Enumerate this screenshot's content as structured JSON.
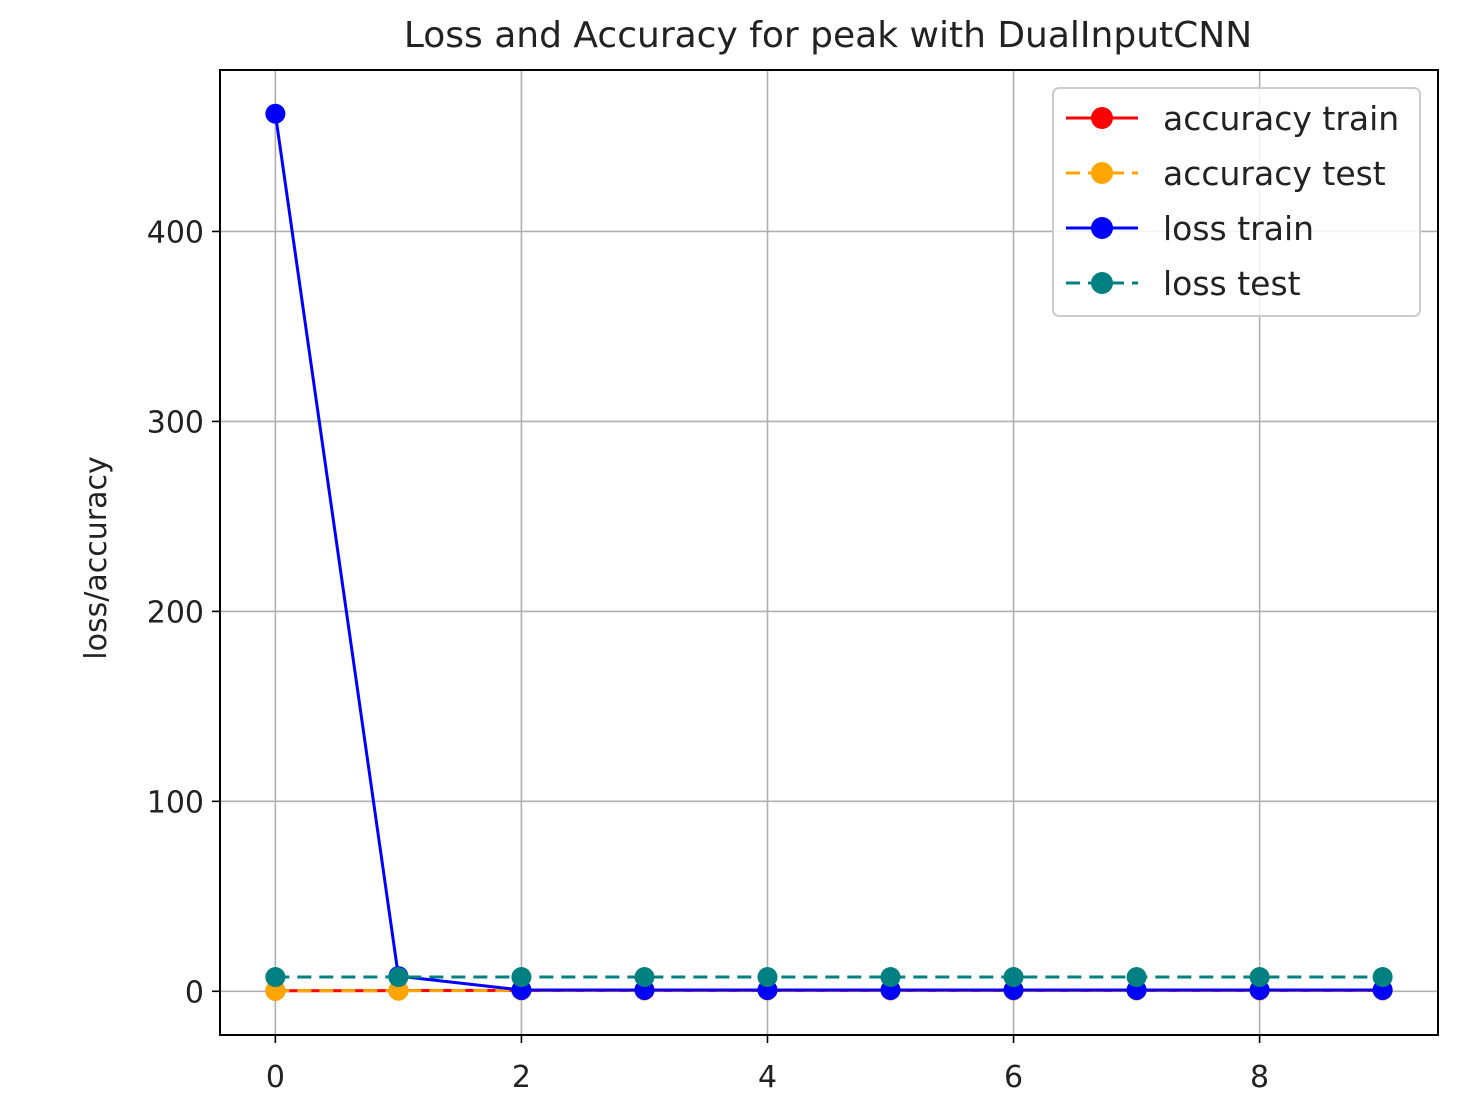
{
  "chart_data": {
    "type": "line",
    "title": "Loss and Accuracy for peak with DualInputCNN",
    "xlabel": "",
    "ylabel": "loss/accuracy",
    "x": [
      0,
      1,
      2,
      3,
      4,
      5,
      6,
      7,
      8,
      9
    ],
    "xlim": [
      -0.45,
      9.45
    ],
    "ylim": [
      -23,
      485
    ],
    "xticks": [
      0,
      2,
      4,
      6,
      8
    ],
    "yticks": [
      0,
      100,
      200,
      300,
      400
    ],
    "grid": true,
    "legend_position": "top-right",
    "series": [
      {
        "name": "accuracy train",
        "color": "#ff0000",
        "linestyle": "solid",
        "marker": "circle",
        "values": [
          0.3,
          0.4,
          0.5,
          0.5,
          0.5,
          0.5,
          0.5,
          0.5,
          0.5,
          0.5
        ]
      },
      {
        "name": "accuracy test",
        "color": "#ffa500",
        "linestyle": "dashed",
        "marker": "circle",
        "values": [
          0.3,
          0.3,
          0.5,
          0.5,
          0.5,
          0.5,
          0.5,
          0.5,
          0.5,
          0.5
        ]
      },
      {
        "name": "loss train",
        "color": "#0000ff",
        "linestyle": "solid",
        "marker": "circle",
        "values": [
          462,
          8,
          0.7,
          0.7,
          0.7,
          0.7,
          0.7,
          0.7,
          0.7,
          0.7
        ]
      },
      {
        "name": "loss test",
        "color": "#008080",
        "linestyle": "dashed",
        "marker": "circle",
        "values": [
          7.5,
          7.5,
          7.5,
          7.5,
          7.5,
          7.5,
          7.5,
          7.5,
          7.5,
          7.5
        ]
      }
    ]
  }
}
